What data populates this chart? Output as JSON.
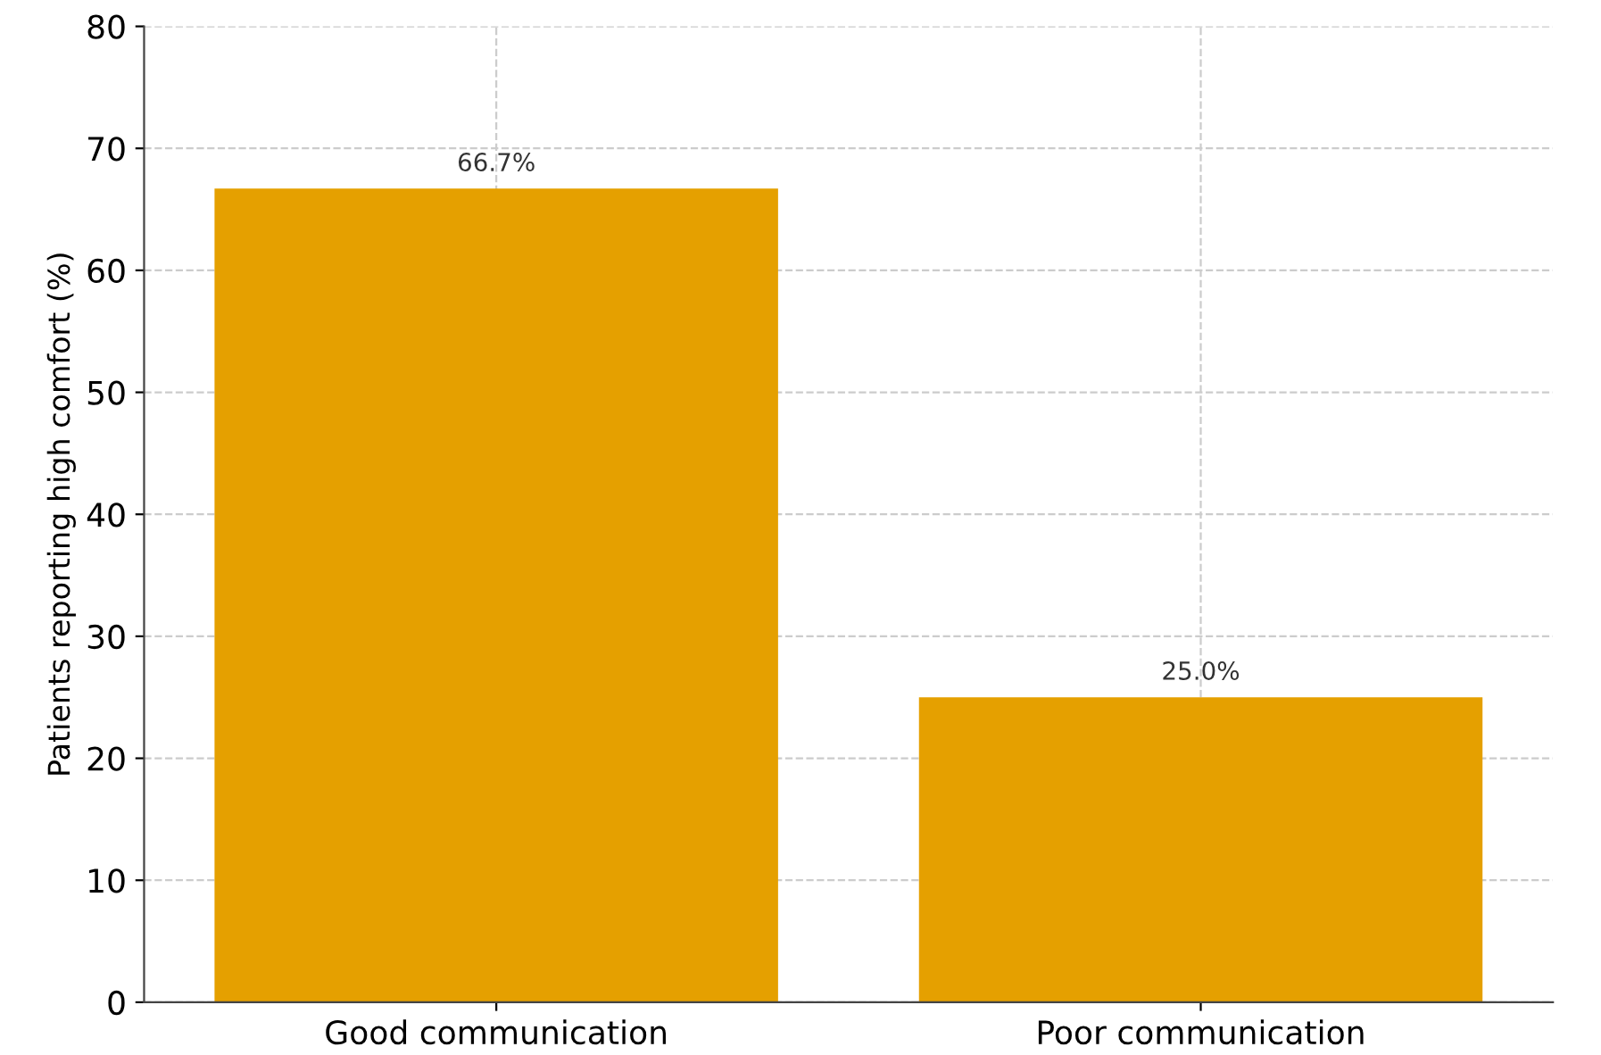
{
  "chart_data": {
    "type": "bar",
    "ylabel": "Patients reporting high comfort (%)",
    "categories": [
      "Good communication",
      "Poor communication"
    ],
    "values": [
      66.7,
      25.0
    ],
    "value_labels": [
      "66.7%",
      "25.0%"
    ],
    "color": "#e5a000",
    "ylim": [
      0,
      80
    ],
    "yticks": [
      0,
      10,
      20,
      30,
      40,
      50,
      60,
      70,
      80
    ],
    "grid": true
  }
}
